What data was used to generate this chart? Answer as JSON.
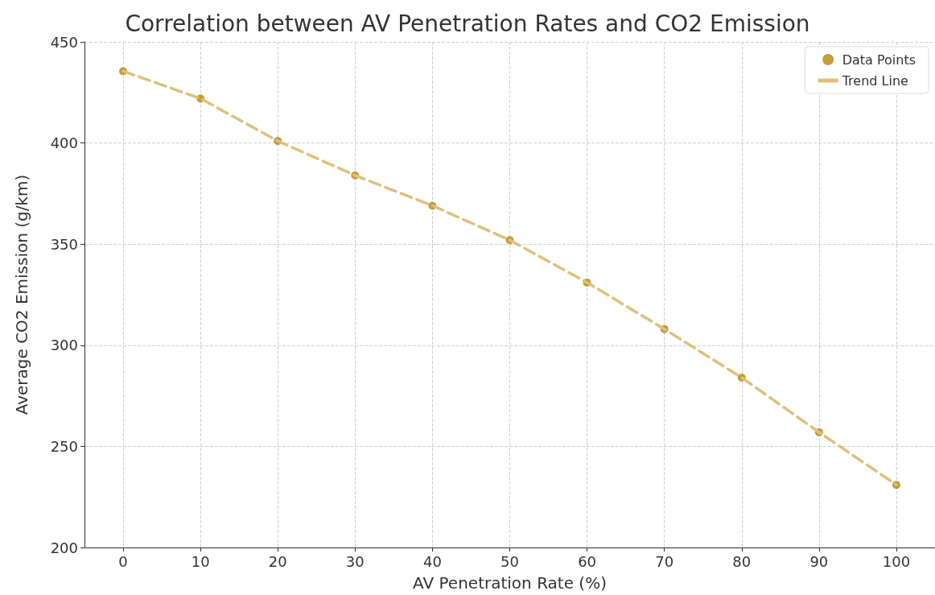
{
  "chart_data": {
    "type": "scatter",
    "title": "Correlation between AV Penetration Rates and CO2 Emission",
    "xlabel": "AV Penetration Rate (%)",
    "ylabel": "Average CO2 Emission (g/km)",
    "x": [
      0,
      10,
      20,
      30,
      40,
      50,
      60,
      70,
      80,
      90,
      100
    ],
    "series": [
      {
        "name": "Data Points",
        "marker": "circle",
        "color": "#b8860b",
        "values": [
          435.5,
          422,
          401,
          384,
          369,
          352,
          331,
          308,
          284,
          257,
          231
        ]
      },
      {
        "name": "Trend Line",
        "type": "line",
        "marker": "none",
        "line_style": "dashed",
        "color": "#dfc07e",
        "x": [
          0,
          10,
          20,
          30,
          40,
          50,
          60,
          70,
          80,
          90,
          100
        ],
        "values": [
          435.5,
          422,
          401,
          384,
          369,
          352,
          331,
          308,
          284,
          257,
          231
        ]
      }
    ],
    "xlim": [
      -5,
      105
    ],
    "xticks": [
      0,
      10,
      20,
      30,
      40,
      50,
      60,
      70,
      80,
      90,
      100
    ],
    "ylim": [
      200,
      450
    ],
    "yticks": [
      200,
      250,
      300,
      350,
      400,
      450
    ],
    "grid": true,
    "legend": "top right"
  }
}
